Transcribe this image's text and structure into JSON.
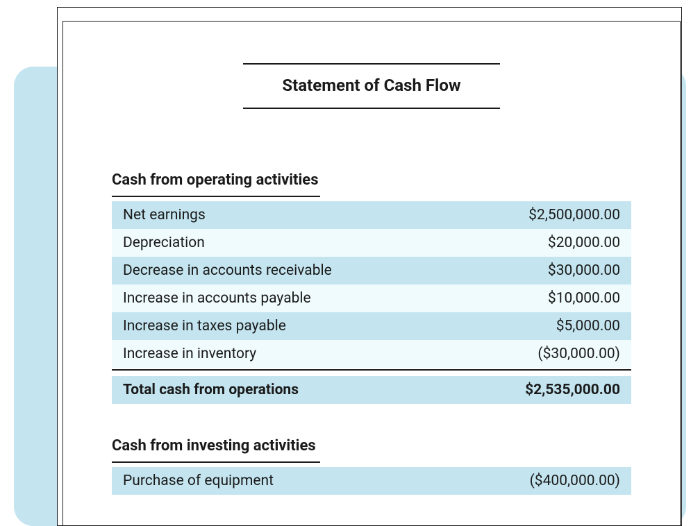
{
  "colors": {
    "background_card": "#c4e5f0",
    "page_bg": "#ffffff",
    "border": "#1a1a1a",
    "row_dark": "#c4e5f0",
    "row_light": "#f0fbfe",
    "text": "#1a1a1a"
  },
  "document": {
    "title": "Statement of Cash Flow",
    "sections": [
      {
        "heading": "Cash from operating activities",
        "rows": [
          {
            "label": "Net earnings",
            "value": "$2,500,000.00"
          },
          {
            "label": "Depreciation",
            "value": "$20,000.00"
          },
          {
            "label": "Decrease in accounts receivable",
            "value": "$30,000.00"
          },
          {
            "label": "Increase in accounts payable",
            "value": "$10,000.00"
          },
          {
            "label": "Increase in taxes payable",
            "value": "$5,000.00"
          },
          {
            "label": "Increase in inventory",
            "value": "($30,000.00)"
          }
        ],
        "total": {
          "label": "Total cash from operations",
          "value": "$2,535,000.00"
        }
      },
      {
        "heading": "Cash from investing activities",
        "rows": [
          {
            "label": "Purchase of equipment",
            "value": "($400,000.00)"
          }
        ]
      }
    ]
  }
}
